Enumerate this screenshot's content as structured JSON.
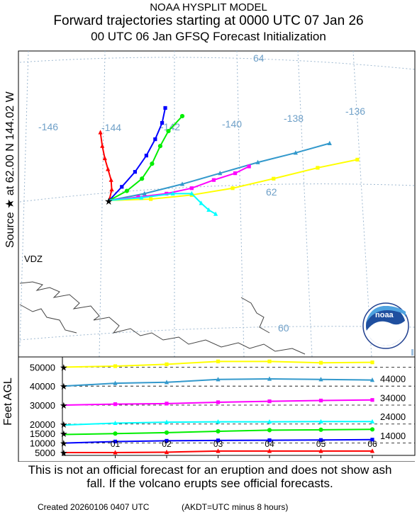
{
  "header": {
    "line1": "NOAA HYSPLIT MODEL",
    "line2": "Forward trajectories starting at 0000 UTC 07 Jan 26",
    "line3": "00 UTC 06 Jan    GFSQ  Forecast Initialization"
  },
  "map": {
    "source_label": "Source ★  at    62.00 N  144.02 W",
    "place_label": "VDZ",
    "lon_labels": [
      "-146",
      "-144",
      "-142",
      "-140",
      "-138",
      "-136"
    ],
    "lat_labels": [
      "64",
      "62",
      "60"
    ],
    "logo_text": "noaa"
  },
  "vertical": {
    "ylabel": "Feet AGL",
    "left_ticks": [
      "50000",
      "40000",
      "30000",
      "20000",
      "15000",
      "10000",
      "5000"
    ],
    "right_ticks": [
      "44000",
      "34000",
      "24000",
      "14000"
    ],
    "x_ticks": [
      "01",
      "02",
      "03",
      "04",
      "05",
      "06"
    ]
  },
  "footer": {
    "disclaimer": "This is not an official forecast for an eruption and does not show ash fall. If the volcano erupts see official forecasts.",
    "created": "Created 20260106 0407 UTC",
    "akdt": "(AKDT=UTC minus 8 hours)"
  },
  "chart_data": {
    "type": "line",
    "colors": {
      "red": "#ff0000",
      "blue": "#0000ff",
      "green": "#00ee00",
      "teal": "#3399cc",
      "magenta": "#ff00ff",
      "yellow": "#ffff00",
      "cyan": "#00ffff"
    },
    "height_panel": {
      "x": [
        0,
        1,
        2,
        3,
        4,
        5,
        6
      ],
      "series": [
        {
          "color": "red",
          "values": [
            5000,
            5000,
            5200,
            5800,
            5800,
            5800,
            5800
          ]
        },
        {
          "color": "blue",
          "values": [
            10000,
            10800,
            11200,
            11400,
            11500,
            11600,
            11800
          ]
        },
        {
          "color": "green",
          "values": [
            14500,
            15000,
            15500,
            16200,
            16800,
            17000,
            17200
          ]
        },
        {
          "color": "cyan",
          "values": [
            19500,
            20500,
            21000,
            21200,
            21200,
            21300,
            21300
          ]
        },
        {
          "color": "magenta",
          "values": [
            30000,
            30500,
            30800,
            31500,
            32000,
            32400,
            32700
          ]
        },
        {
          "color": "teal",
          "values": [
            40000,
            41500,
            42000,
            43500,
            43800,
            43500,
            43200
          ]
        },
        {
          "color": "yellow",
          "values": [
            50000,
            50500,
            51500,
            53000,
            53000,
            52300,
            52500
          ]
        }
      ]
    },
    "trajectories": [
      {
        "color": "red",
        "points": [
          [
            -144.02,
            62.0
          ],
          [
            -143.94,
            62.16
          ],
          [
            -143.96,
            62.3
          ],
          [
            -144.06,
            62.46
          ],
          [
            -144.16,
            62.62
          ],
          [
            -144.24,
            62.8
          ],
          [
            -144.3,
            63.0
          ]
        ]
      },
      {
        "color": "blue",
        "points": [
          [
            -144.02,
            62.0
          ],
          [
            -143.62,
            62.2
          ],
          [
            -143.2,
            62.42
          ],
          [
            -142.84,
            62.66
          ],
          [
            -142.56,
            62.9
          ],
          [
            -142.34,
            63.14
          ],
          [
            -142.24,
            63.36
          ]
        ]
      },
      {
        "color": "green",
        "points": [
          [
            -144.02,
            62.0
          ],
          [
            -143.46,
            62.14
          ],
          [
            -142.98,
            62.32
          ],
          [
            -142.66,
            62.54
          ],
          [
            -142.4,
            62.8
          ],
          [
            -142.14,
            63.02
          ],
          [
            -141.7,
            63.24
          ]
        ]
      },
      {
        "color": "teal",
        "points": [
          [
            -144.02,
            62.0
          ],
          [
            -142.9,
            62.1
          ],
          [
            -141.7,
            62.24
          ],
          [
            -140.5,
            62.4
          ],
          [
            -139.3,
            62.56
          ],
          [
            -138.1,
            62.7
          ],
          [
            -137.02,
            62.84
          ]
        ]
      },
      {
        "color": "magenta",
        "points": [
          [
            -144.02,
            62.0
          ],
          [
            -143.1,
            62.05
          ],
          [
            -142.2,
            62.1
          ],
          [
            -141.4,
            62.18
          ],
          [
            -140.7,
            62.3
          ],
          [
            -140.02,
            62.4
          ],
          [
            -139.58,
            62.5
          ]
        ]
      },
      {
        "color": "yellow",
        "points": [
          [
            -144.02,
            62.0
          ],
          [
            -142.7,
            62.02
          ],
          [
            -141.4,
            62.08
          ],
          [
            -140.1,
            62.18
          ],
          [
            -138.8,
            62.32
          ],
          [
            -137.4,
            62.48
          ],
          [
            -136.14,
            62.6
          ]
        ]
      },
      {
        "color": "cyan",
        "points": [
          [
            -144.02,
            62.0
          ],
          [
            -143.0,
            62.04
          ],
          [
            -142.0,
            62.1
          ],
          [
            -141.4,
            62.1
          ],
          [
            -141.1,
            61.96
          ],
          [
            -140.86,
            61.86
          ],
          [
            -140.64,
            61.8
          ]
        ]
      }
    ]
  }
}
